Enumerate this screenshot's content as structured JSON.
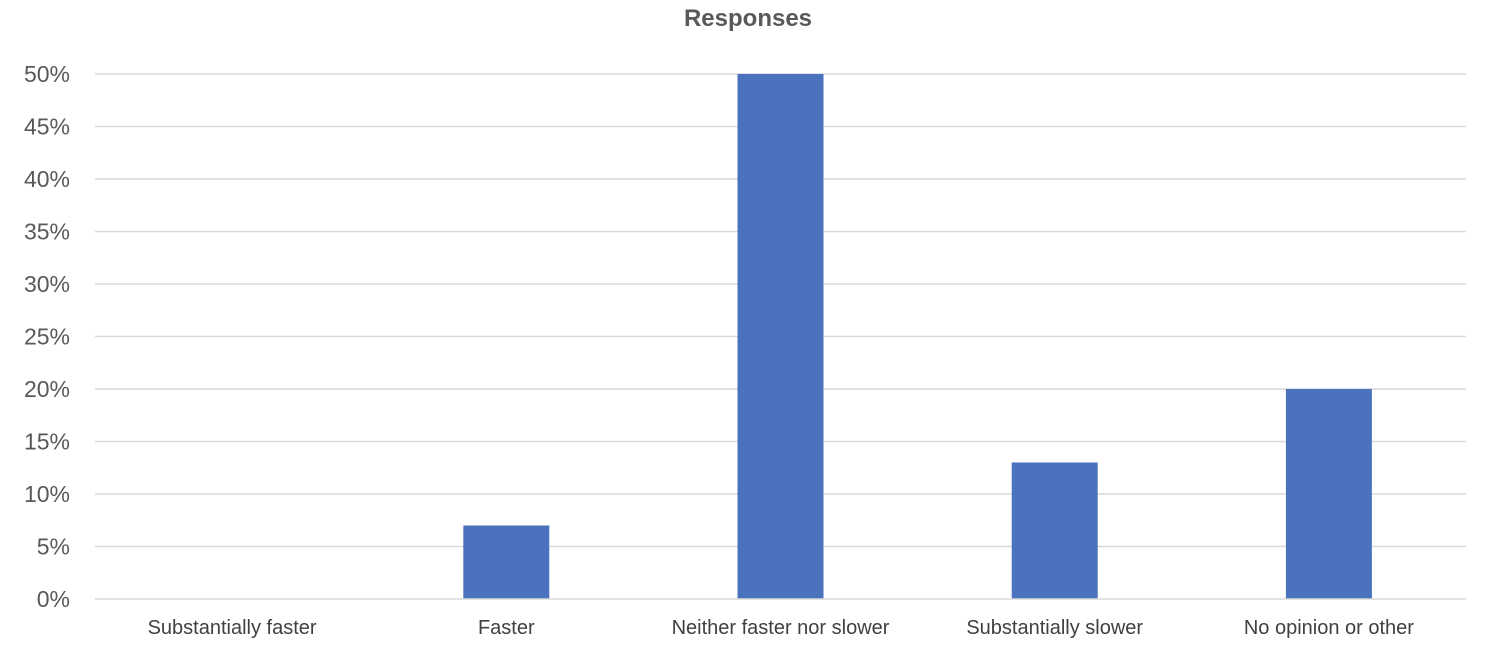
{
  "chart_data": {
    "type": "bar",
    "title": "Responses",
    "categories": [
      "Substantially faster",
      "Faster",
      "Neither faster nor slower",
      "Substantially slower",
      "No opinion or other"
    ],
    "values": [
      0,
      7,
      50,
      13,
      20
    ],
    "value_unit": "%",
    "ylim": [
      0,
      50
    ],
    "yticks": [
      0,
      5,
      10,
      15,
      20,
      25,
      30,
      35,
      40,
      45,
      50
    ],
    "ytick_labels": [
      "0%",
      "5%",
      "10%",
      "15%",
      "20%",
      "25%",
      "30%",
      "35%",
      "40%",
      "45%",
      "50%"
    ],
    "xlabel": "",
    "ylabel": "",
    "grid": true,
    "legend": "none",
    "bar_color": "#4a72bd"
  }
}
